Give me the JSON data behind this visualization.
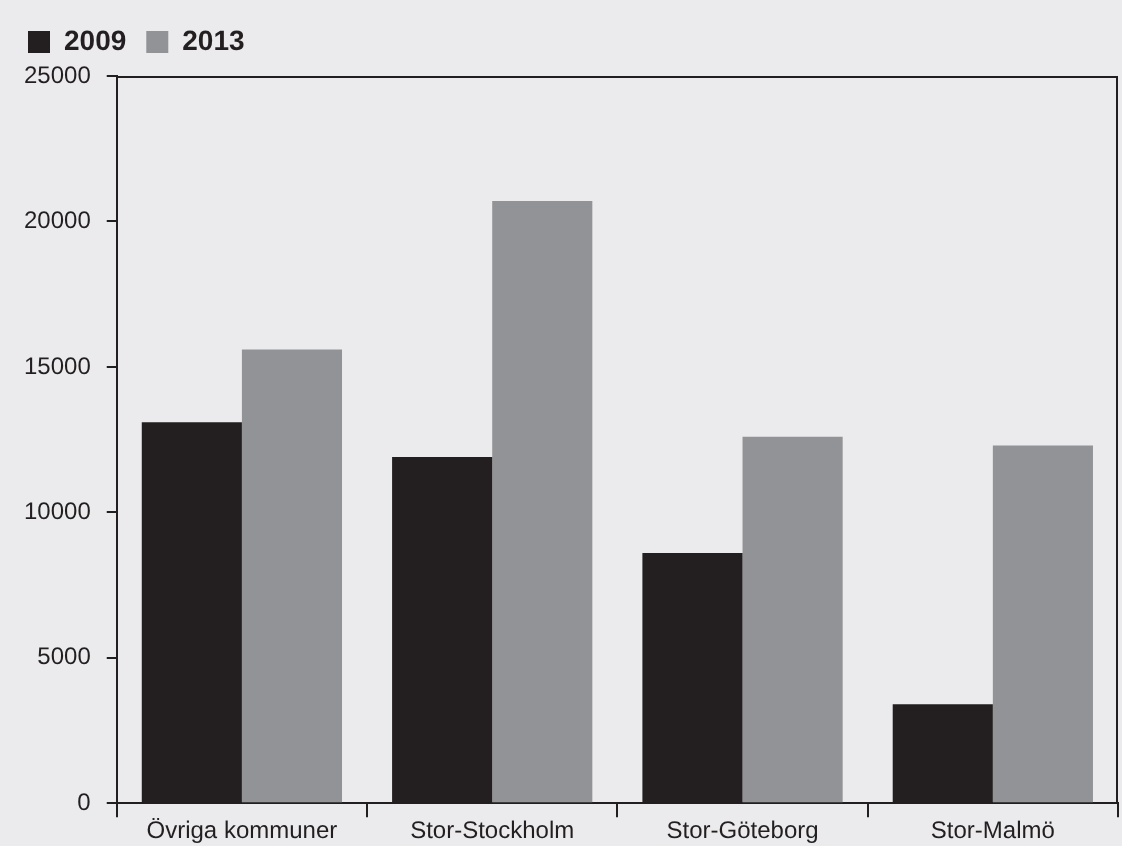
{
  "chart_data": {
    "type": "bar",
    "categories": [
      "Övriga kommuner",
      "Stor-Stockholm",
      "Stor-Göteborg",
      "Stor-Malmö"
    ],
    "series": [
      {
        "name": "2009",
        "color": "#231f20",
        "values": [
          13100,
          11900,
          8600,
          3400
        ]
      },
      {
        "name": "2013",
        "color": "#929396",
        "values": [
          15600,
          20700,
          12600,
          12300
        ]
      }
    ],
    "ylim": [
      0,
      25000
    ],
    "yticks": [
      0,
      5000,
      10000,
      15000,
      20000,
      25000
    ],
    "grid": false,
    "legend": "top left"
  }
}
